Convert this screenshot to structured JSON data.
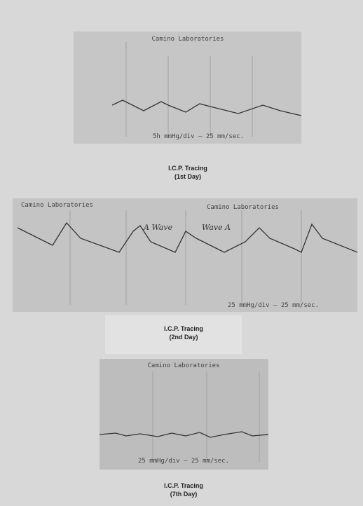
{
  "figures": [
    {
      "headers": [
        "Camino Laboratories"
      ],
      "scale": "5h mmHg/div — 25 mm/sec.",
      "caption": [
        "I.C.P. Tracing",
        "(1st Day)"
      ]
    },
    {
      "headers": [
        "Camino Laboratories",
        "Camino Laboratories"
      ],
      "annotations": [
        "A Wave",
        "Wave A"
      ],
      "scale": "25 mmHg/div — 25 mm/sec.",
      "caption": [
        "I.C.P. Tracing",
        "(2nd Day)"
      ]
    },
    {
      "headers": [
        "Camino Laboratories"
      ],
      "scale": "25 mmHg/div — 25 mm/sec.",
      "caption": [
        "I.C.P. Tracing",
        "(7th Day)"
      ]
    }
  ]
}
